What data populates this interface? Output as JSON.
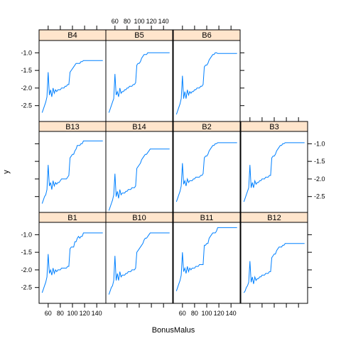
{
  "chart_data": {
    "type": "line",
    "layout": "trellis 4 columns x 3 rows",
    "xlabel": "BonusMalus",
    "ylabel": "y",
    "xlim": [
      45,
      155
    ],
    "ylim": [
      -2.95,
      -0.65
    ],
    "x_ticks": [
      60,
      80,
      100,
      120,
      140
    ],
    "x_tick_labels": [
      "60",
      "80",
      "100",
      "120",
      "140"
    ],
    "y_ticks": [
      -1.0,
      -1.5,
      -2.0,
      -2.5
    ],
    "y_tick_labels": [
      "-1.0",
      "-1.5",
      "-2.0",
      "-2.5"
    ],
    "x": [
      50,
      52,
      54,
      56,
      58,
      60,
      62,
      64,
      66,
      68,
      70,
      72,
      74,
      76,
      78,
      80,
      82,
      84,
      86,
      88,
      90,
      92,
      94,
      96,
      98,
      100,
      102,
      104,
      106,
      108,
      110,
      112,
      114,
      116,
      118,
      120,
      130,
      140,
      150
    ],
    "panels": [
      {
        "name": "B1",
        "y": [
          -2.65,
          -2.55,
          -2.45,
          -2.35,
          -2.2,
          -1.55,
          -2.1,
          -2.0,
          -2.15,
          -1.95,
          -2.1,
          -2.0,
          -2.05,
          -2.0,
          -2.0,
          -2.0,
          -1.95,
          -1.95,
          -1.95,
          -1.95,
          -1.95,
          -1.9,
          -1.9,
          -1.4,
          -1.35,
          -1.35,
          -1.35,
          -1.2,
          -1.2,
          -1.1,
          -1.05,
          -1.1,
          -1.05,
          -1.05,
          -0.95,
          -0.95,
          -0.95,
          -0.95,
          -0.95
        ]
      },
      {
        "name": "B10",
        "y": [
          -2.7,
          -2.6,
          -2.5,
          -2.45,
          -2.3,
          -1.6,
          -2.3,
          -2.1,
          -2.3,
          -2.05,
          -2.2,
          -2.15,
          -2.15,
          -2.15,
          -2.1,
          -2.1,
          -2.05,
          -2.05,
          -2.05,
          -2.0,
          -2.0,
          -2.0,
          -1.95,
          -1.5,
          -1.45,
          -1.4,
          -1.35,
          -1.3,
          -1.25,
          -1.15,
          -1.1,
          -1.1,
          -1.05,
          -1.0,
          -0.95,
          -0.95,
          -0.95,
          -0.95,
          -0.95
        ]
      },
      {
        "name": "B11",
        "y": [
          -2.6,
          -2.5,
          -2.4,
          -2.3,
          -2.15,
          -1.5,
          -2.05,
          -1.95,
          -2.1,
          -1.9,
          -2.05,
          -1.95,
          -2.0,
          -1.95,
          -1.95,
          -1.95,
          -1.9,
          -1.9,
          -1.9,
          -1.85,
          -1.85,
          -1.85,
          -1.85,
          -1.3,
          -1.3,
          -1.25,
          -1.25,
          -1.1,
          -1.05,
          -1.0,
          -0.95,
          -0.95,
          -0.95,
          -0.9,
          -0.8,
          -0.8,
          -0.8,
          -0.8,
          -0.8
        ]
      },
      {
        "name": "B12",
        "y": [
          -2.65,
          -2.6,
          -2.5,
          -2.45,
          -2.35,
          -1.75,
          -2.35,
          -2.2,
          -2.4,
          -2.2,
          -2.3,
          -2.25,
          -2.25,
          -2.2,
          -2.2,
          -2.15,
          -2.15,
          -2.15,
          -2.1,
          -2.1,
          -2.1,
          -2.05,
          -2.05,
          -1.65,
          -1.6,
          -1.55,
          -1.55,
          -1.45,
          -1.4,
          -1.35,
          -1.35,
          -1.35,
          -1.3,
          -1.3,
          -1.25,
          -1.25,
          -1.25,
          -1.25,
          -1.25
        ]
      },
      {
        "name": "B13",
        "y": [
          -2.7,
          -2.6,
          -2.5,
          -2.45,
          -2.3,
          -1.6,
          -2.2,
          -2.1,
          -2.3,
          -2.05,
          -2.2,
          -2.1,
          -2.15,
          -2.1,
          -2.1,
          -2.05,
          -2.0,
          -2.0,
          -2.0,
          -2.0,
          -2.0,
          -1.95,
          -1.9,
          -1.4,
          -1.35,
          -1.3,
          -1.3,
          -1.2,
          -1.15,
          -1.05,
          -1.05,
          -1.05,
          -1.0,
          -1.0,
          -0.92,
          -0.92,
          -0.92,
          -0.92,
          -0.92
        ]
      },
      {
        "name": "B14",
        "y": [
          -2.9,
          -2.8,
          -2.7,
          -2.6,
          -2.45,
          -1.85,
          -2.5,
          -2.35,
          -2.55,
          -2.3,
          -2.45,
          -2.4,
          -2.4,
          -2.4,
          -2.35,
          -2.35,
          -2.3,
          -2.3,
          -2.3,
          -2.25,
          -2.25,
          -2.25,
          -2.2,
          -1.7,
          -1.65,
          -1.6,
          -1.55,
          -1.45,
          -1.4,
          -1.35,
          -1.3,
          -1.3,
          -1.25,
          -1.2,
          -1.15,
          -1.15,
          -1.15,
          -1.15,
          -1.15
        ]
      },
      {
        "name": "B2",
        "y": [
          -2.65,
          -2.55,
          -2.45,
          -2.35,
          -2.2,
          -1.55,
          -2.15,
          -2.05,
          -2.2,
          -2.0,
          -2.1,
          -2.05,
          -2.05,
          -2.05,
          -2.0,
          -2.0,
          -1.95,
          -1.95,
          -1.95,
          -1.95,
          -1.9,
          -1.9,
          -1.85,
          -1.4,
          -1.35,
          -1.35,
          -1.3,
          -1.2,
          -1.15,
          -1.1,
          -1.05,
          -1.05,
          -1.0,
          -1.0,
          -0.97,
          -0.97,
          -0.97,
          -0.97,
          -0.97
        ]
      },
      {
        "name": "B3",
        "y": [
          -2.65,
          -2.55,
          -2.45,
          -2.35,
          -2.25,
          -1.6,
          -2.25,
          -2.1,
          -2.25,
          -2.05,
          -2.15,
          -2.1,
          -2.1,
          -2.05,
          -2.05,
          -2.0,
          -2.0,
          -2.0,
          -1.95,
          -1.95,
          -1.95,
          -1.9,
          -1.9,
          -1.4,
          -1.35,
          -1.35,
          -1.3,
          -1.2,
          -1.15,
          -1.1,
          -1.05,
          -1.05,
          -1.0,
          -1.0,
          -0.97,
          -0.97,
          -0.97,
          -0.97,
          -0.97
        ]
      },
      {
        "name": "B4",
        "y": [
          -2.7,
          -2.6,
          -2.5,
          -2.4,
          -2.25,
          -1.55,
          -2.2,
          -2.05,
          -2.25,
          -2.0,
          -2.15,
          -2.05,
          -2.1,
          -2.05,
          -2.05,
          -2.05,
          -2.0,
          -2.0,
          -2.0,
          -1.95,
          -1.95,
          -1.9,
          -1.9,
          -1.55,
          -1.5,
          -1.45,
          -1.4,
          -1.35,
          -1.3,
          -1.3,
          -1.3,
          -1.3,
          -1.25,
          -1.25,
          -1.22,
          -1.22,
          -1.22,
          -1.22,
          -1.22
        ]
      },
      {
        "name": "B5",
        "y": [
          -2.7,
          -2.6,
          -2.5,
          -2.4,
          -2.3,
          -1.6,
          -2.2,
          -2.1,
          -2.25,
          -2.0,
          -2.15,
          -2.1,
          -2.1,
          -2.05,
          -2.05,
          -2.0,
          -2.0,
          -1.95,
          -1.95,
          -1.95,
          -1.9,
          -1.9,
          -1.85,
          -1.35,
          -1.3,
          -1.3,
          -1.25,
          -1.15,
          -1.1,
          -1.05,
          -1.05,
          -1.05,
          -1.0,
          -1.0,
          -1.0,
          -1.0,
          -1.0,
          -1.0,
          -1.0
        ]
      },
      {
        "name": "B6",
        "y": [
          -2.75,
          -2.65,
          -2.55,
          -2.45,
          -2.3,
          -1.65,
          -2.3,
          -2.1,
          -2.3,
          -2.05,
          -2.2,
          -2.1,
          -2.15,
          -2.1,
          -2.1,
          -2.05,
          -2.05,
          -2.0,
          -2.0,
          -2.0,
          -1.95,
          -1.95,
          -1.9,
          -1.4,
          -1.35,
          -1.35,
          -1.3,
          -1.2,
          -1.15,
          -1.1,
          -1.05,
          -1.05,
          -1.0,
          -1.0,
          -1.02,
          -1.02,
          -1.02,
          -1.02,
          -1.02
        ]
      }
    ]
  }
}
